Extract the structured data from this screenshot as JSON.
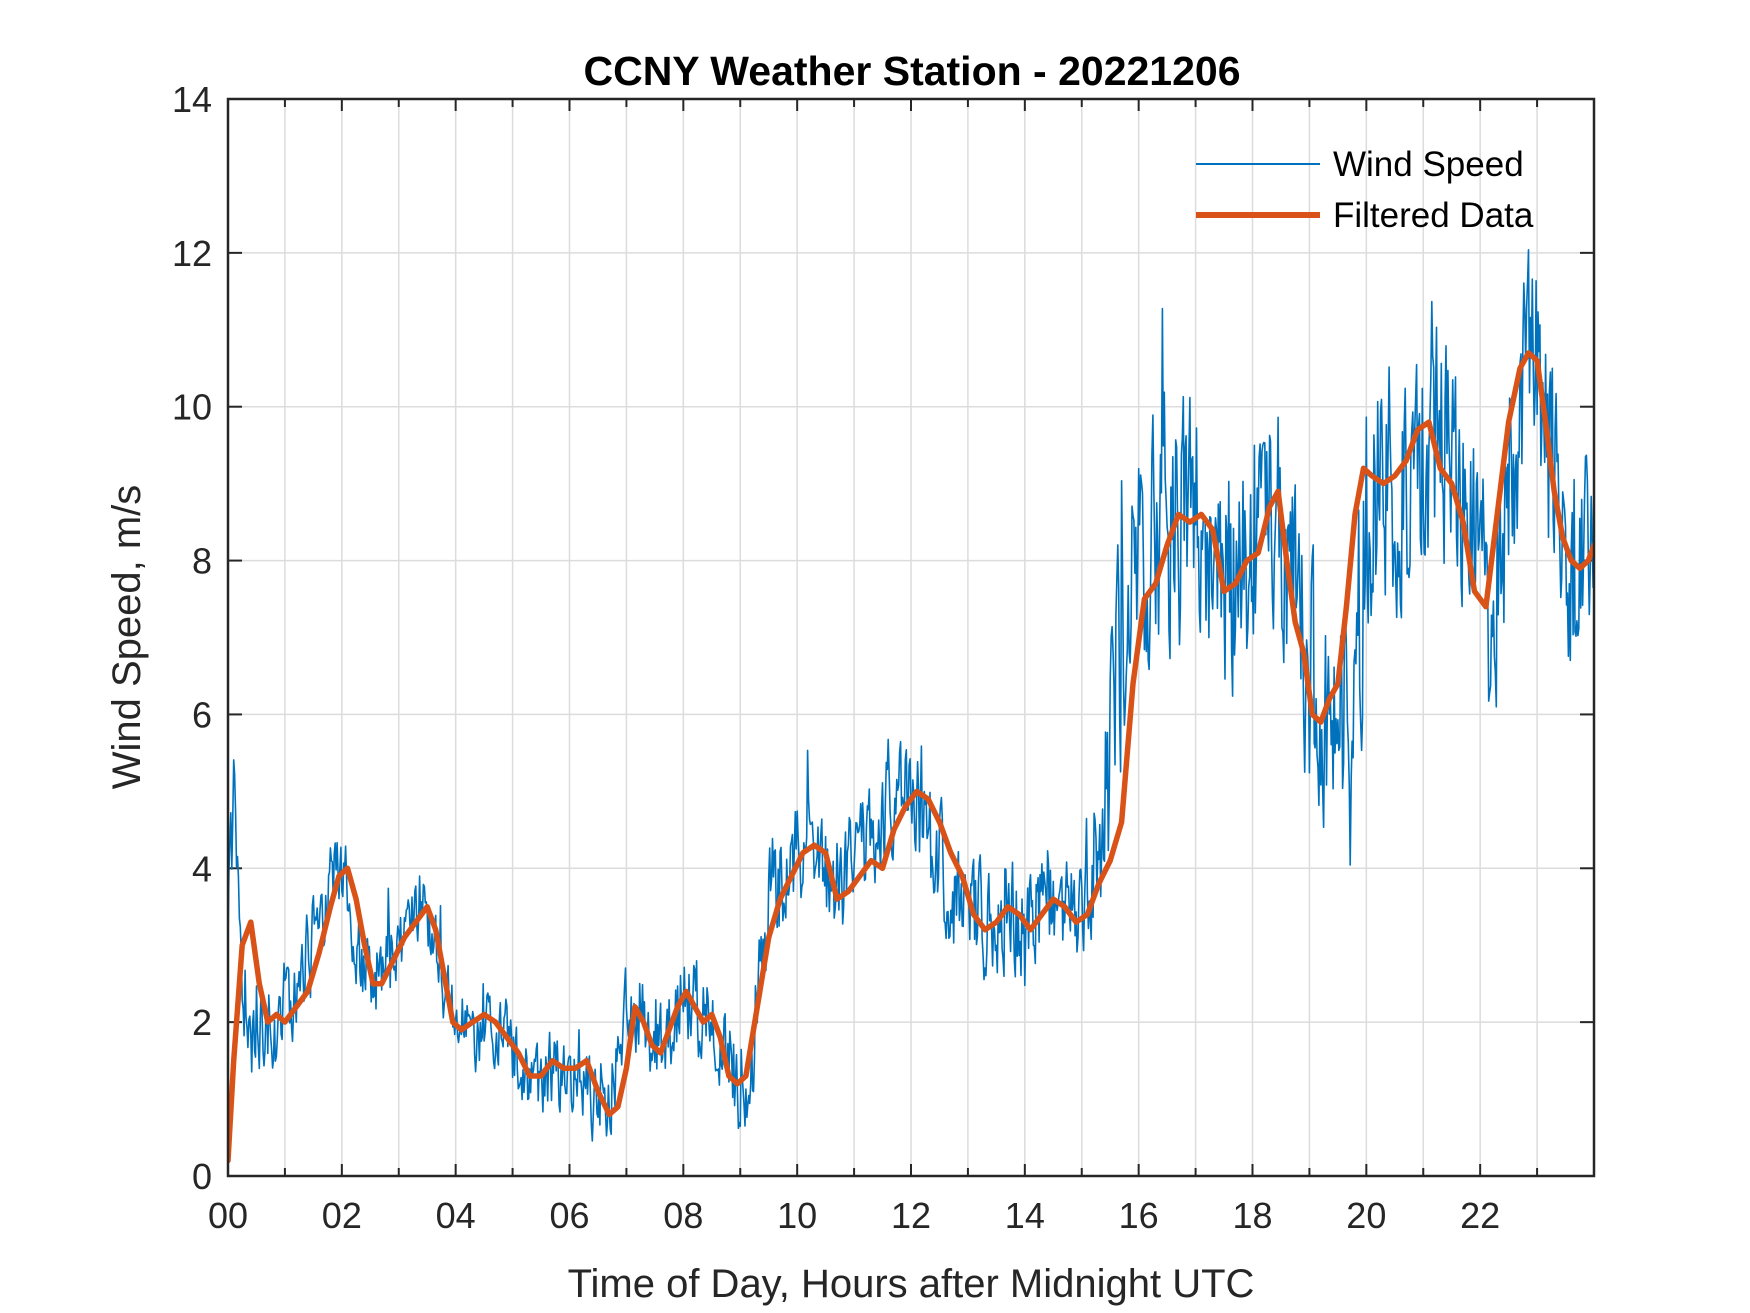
{
  "chart_data": {
    "type": "line",
    "title": "CCNY Weather Station - 20221206",
    "xlabel": "Time of Day, Hours after Midnight UTC",
    "ylabel": "Wind Speed, m/s",
    "xlim": [
      0,
      24
    ],
    "ylim": [
      0,
      14
    ],
    "grid": true,
    "x_ticks": [
      0,
      2,
      4,
      6,
      8,
      10,
      12,
      14,
      16,
      18,
      20,
      22
    ],
    "x_tick_labels": [
      "00",
      "02",
      "04",
      "06",
      "08",
      "10",
      "12",
      "14",
      "16",
      "18",
      "20",
      "22"
    ],
    "y_ticks": [
      0,
      2,
      4,
      6,
      8,
      10,
      12,
      14
    ],
    "y_tick_labels": [
      "0",
      "2",
      "4",
      "6",
      "8",
      "10",
      "12",
      "14"
    ],
    "legend_position": "top-right",
    "series": [
      {
        "name": "Wind Speed",
        "color": "#0072BD",
        "style": "thin",
        "anchors_x": [
          0.0,
          0.05,
          0.1,
          0.15,
          0.2,
          0.3,
          0.4,
          0.5,
          0.6,
          0.7,
          0.8,
          1.0,
          1.2,
          1.4,
          1.6,
          1.8,
          1.9,
          2.0,
          2.1,
          2.2,
          2.4,
          2.6,
          2.8,
          3.0,
          3.2,
          3.4,
          3.6,
          3.8,
          4.0,
          4.2,
          4.4,
          4.6,
          4.8,
          5.0,
          5.2,
          5.4,
          5.6,
          5.8,
          6.0,
          6.2,
          6.4,
          6.6,
          6.8,
          7.0,
          7.2,
          7.4,
          7.6,
          7.8,
          8.0,
          8.2,
          8.4,
          8.6,
          8.8,
          9.0,
          9.2,
          9.4,
          9.6,
          9.8,
          10.0,
          10.2,
          10.4,
          10.6,
          10.8,
          11.0,
          11.2,
          11.4,
          11.6,
          11.8,
          12.0,
          12.2,
          12.4,
          12.6,
          12.8,
          13.0,
          13.2,
          13.4,
          13.6,
          13.8,
          14.0,
          14.2,
          14.4,
          14.6,
          14.8,
          15.0,
          15.2,
          15.4,
          15.6,
          15.8,
          16.0,
          16.2,
          16.4,
          16.6,
          16.8,
          17.0,
          17.2,
          17.4,
          17.6,
          17.8,
          18.0,
          18.2,
          18.4,
          18.6,
          18.8,
          19.0,
          19.2,
          19.4,
          19.6,
          19.8,
          20.0,
          20.2,
          20.4,
          20.6,
          20.8,
          21.0,
          21.2,
          21.4,
          21.6,
          21.8,
          22.0,
          22.2,
          22.4,
          22.6,
          22.8,
          23.0,
          23.2,
          23.4,
          23.6,
          23.8,
          24.0
        ],
        "anchors_y": [
          3.6,
          4.0,
          4.9,
          4.2,
          3.2,
          2.3,
          1.8,
          1.8,
          2.0,
          2.1,
          2.0,
          2.2,
          2.4,
          2.8,
          3.3,
          3.7,
          4.3,
          4.0,
          3.6,
          3.2,
          2.7,
          2.6,
          2.8,
          3.0,
          3.4,
          3.6,
          3.2,
          2.4,
          2.0,
          1.8,
          1.9,
          2.0,
          1.9,
          1.6,
          1.4,
          1.2,
          1.3,
          1.4,
          1.2,
          1.1,
          1.0,
          0.9,
          1.4,
          2.1,
          2.2,
          1.9,
          1.7,
          2.0,
          2.3,
          2.2,
          2.1,
          1.8,
          1.4,
          1.2,
          1.6,
          2.9,
          3.6,
          3.9,
          4.1,
          4.3,
          4.0,
          3.7,
          3.9,
          4.3,
          4.2,
          4.5,
          4.9,
          5.0,
          5.0,
          4.6,
          4.2,
          3.9,
          3.6,
          3.3,
          3.3,
          3.4,
          3.3,
          3.4,
          3.2,
          3.5,
          3.7,
          3.3,
          3.4,
          3.7,
          4.0,
          5.0,
          6.4,
          7.2,
          7.8,
          8.0,
          8.4,
          8.6,
          8.4,
          8.5,
          8.3,
          7.8,
          7.8,
          8.0,
          8.1,
          8.5,
          8.8,
          8.0,
          7.2,
          6.6,
          6.0,
          5.8,
          6.3,
          7.2,
          8.5,
          9.2,
          9.1,
          9.0,
          9.1,
          9.4,
          9.6,
          9.2,
          8.9,
          8.5,
          7.6,
          7.5,
          8.4,
          9.6,
          10.5,
          10.5,
          9.6,
          8.8,
          8.1,
          8.0,
          8.2
        ],
        "fluctuation_amplitude_by_hour": [
          [
            0,
            0.9
          ],
          [
            4,
            0.6
          ],
          [
            9,
            0.9
          ],
          [
            12,
            1.0
          ],
          [
            15,
            1.0
          ],
          [
            15.6,
            2.2
          ],
          [
            18,
            2.0
          ],
          [
            20,
            2.2
          ],
          [
            24,
            2.0
          ]
        ],
        "samples_per_hour": 60,
        "noise_seed": 20221206
      },
      {
        "name": "Filtered Data",
        "color": "#D95319",
        "style": "thick",
        "x": [
          0.0,
          0.1,
          0.25,
          0.4,
          0.55,
          0.7,
          0.85,
          1.0,
          1.2,
          1.4,
          1.6,
          1.8,
          1.95,
          2.1,
          2.25,
          2.4,
          2.55,
          2.7,
          2.9,
          3.1,
          3.3,
          3.5,
          3.65,
          3.8,
          3.95,
          4.1,
          4.3,
          4.5,
          4.7,
          4.9,
          5.1,
          5.3,
          5.5,
          5.7,
          5.9,
          6.1,
          6.3,
          6.5,
          6.7,
          6.85,
          7.0,
          7.15,
          7.3,
          7.45,
          7.6,
          7.75,
          7.9,
          8.05,
          8.2,
          8.35,
          8.5,
          8.65,
          8.8,
          8.95,
          9.1,
          9.3,
          9.5,
          9.7,
          9.9,
          10.1,
          10.3,
          10.5,
          10.7,
          10.9,
          11.1,
          11.3,
          11.5,
          11.7,
          11.9,
          12.1,
          12.3,
          12.5,
          12.7,
          12.9,
          13.1,
          13.3,
          13.5,
          13.7,
          13.9,
          14.1,
          14.3,
          14.5,
          14.7,
          14.9,
          15.1,
          15.3,
          15.5,
          15.7,
          15.9,
          16.1,
          16.3,
          16.5,
          16.7,
          16.9,
          17.1,
          17.3,
          17.5,
          17.7,
          17.9,
          18.1,
          18.3,
          18.45,
          18.6,
          18.75,
          18.9,
          19.05,
          19.2,
          19.35,
          19.5,
          19.65,
          19.8,
          19.95,
          20.1,
          20.3,
          20.5,
          20.7,
          20.9,
          21.1,
          21.3,
          21.5,
          21.7,
          21.9,
          22.1,
          22.3,
          22.5,
          22.7,
          22.85,
          23.0,
          23.15,
          23.3,
          23.45,
          23.6,
          23.75,
          23.9,
          24.0
        ],
        "y": [
          0.2,
          1.5,
          3.0,
          3.3,
          2.5,
          2.0,
          2.1,
          2.0,
          2.2,
          2.4,
          2.9,
          3.5,
          3.9,
          4.0,
          3.6,
          3.0,
          2.5,
          2.5,
          2.8,
          3.1,
          3.3,
          3.5,
          3.2,
          2.6,
          2.0,
          1.9,
          2.0,
          2.1,
          2.0,
          1.8,
          1.6,
          1.3,
          1.3,
          1.5,
          1.4,
          1.4,
          1.5,
          1.1,
          0.8,
          0.9,
          1.4,
          2.2,
          2.0,
          1.7,
          1.6,
          1.9,
          2.2,
          2.4,
          2.2,
          2.0,
          2.1,
          1.8,
          1.3,
          1.2,
          1.3,
          2.2,
          3.1,
          3.6,
          3.9,
          4.2,
          4.3,
          4.2,
          3.6,
          3.7,
          3.9,
          4.1,
          4.0,
          4.5,
          4.8,
          5.0,
          4.9,
          4.6,
          4.2,
          3.9,
          3.4,
          3.2,
          3.3,
          3.5,
          3.4,
          3.2,
          3.4,
          3.6,
          3.5,
          3.3,
          3.4,
          3.8,
          4.1,
          4.6,
          6.4,
          7.5,
          7.7,
          8.2,
          8.6,
          8.5,
          8.6,
          8.4,
          7.6,
          7.7,
          8.0,
          8.1,
          8.7,
          8.9,
          8.0,
          7.2,
          6.8,
          6.0,
          5.9,
          6.2,
          6.4,
          7.4,
          8.6,
          9.2,
          9.1,
          9.0,
          9.1,
          9.3,
          9.7,
          9.8,
          9.2,
          9.0,
          8.5,
          7.6,
          7.4,
          8.6,
          9.8,
          10.5,
          10.7,
          10.6,
          9.8,
          8.9,
          8.3,
          8.0,
          7.9,
          8.0,
          8.2
        ]
      }
    ]
  }
}
